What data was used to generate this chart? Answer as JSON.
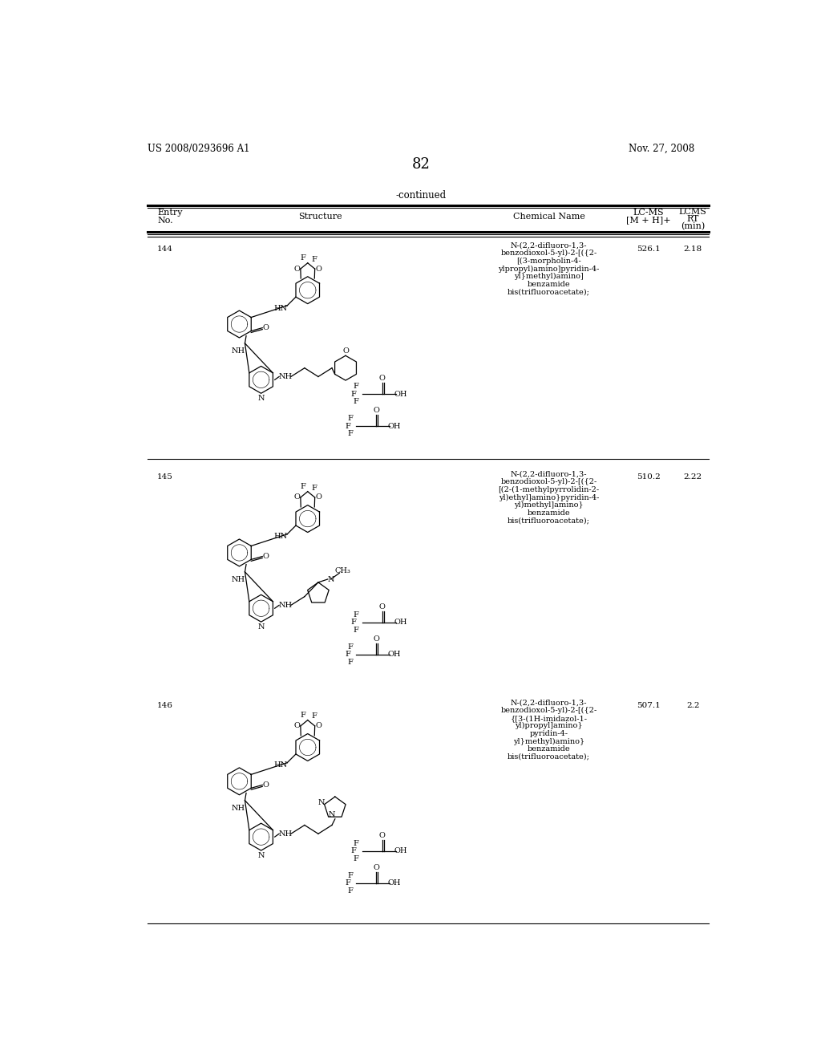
{
  "patent_number": "US 2008/0293696 A1",
  "date": "Nov. 27, 2008",
  "page_number": "82",
  "continued_text": "-continued",
  "entries": [
    {
      "entry_no": "144",
      "chemical_name": "N-(2,2-difluoro-1,3-\nbenzodioxol-5-yl)-2-[({2-\n[(3-morpholin-4-\nylpropyl)amino]pyridin-4-\nyl}methyl)amino]\nbenzamide\nbis(trifluoroacetate);",
      "lc_ms": "526.1",
      "rt": "2.18"
    },
    {
      "entry_no": "145",
      "chemical_name": "N-(2,2-difluoro-1,3-\nbenzodioxol-5-yl)-2-[({2-\n[(2-(1-methylpyrrolidin-2-\nyl)ethyl]amino}pyridin-4-\nyl)methyl]amino}\nbenzamide\nbis(trifluoroacetate);",
      "lc_ms": "510.2",
      "rt": "2.22"
    },
    {
      "entry_no": "146",
      "chemical_name": "N-(2,2-difluoro-1,3-\nbenzodioxol-5-yl)-2-[({2-\n{[3-(1H-imidazol-1-\nyl)propyl]amino}\npyridin-4-\nyl}methyl)amino}\nbenzamide\nbis(trifluoroacetate);",
      "lc_ms": "507.1",
      "rt": "2.2"
    }
  ],
  "bg_color": "#ffffff",
  "text_color": "#000000",
  "line_color": "#000000"
}
